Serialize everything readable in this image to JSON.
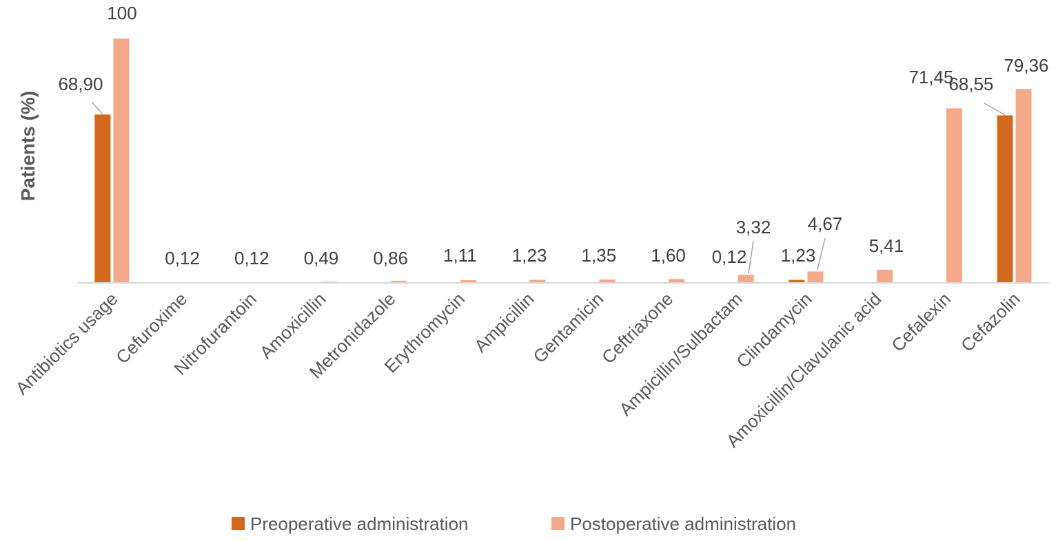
{
  "chart_data": {
    "type": "bar",
    "title": "",
    "xlabel": "",
    "ylabel": "Patients (%)",
    "ylim": [
      0,
      100
    ],
    "grid": false,
    "legend_position": "bottom",
    "categories": [
      "Antibiotics usage",
      "Cefuroxime",
      "Nitrofurantoin",
      "Amoxicillin",
      "Metronidazole",
      "Erythromycin",
      "Ampicillin",
      "Gentamicin",
      "Ceftriaxone",
      "Ampicillin/Sulbactam",
      "Clindamycin",
      "Amoxicillin/Clavulanic acid",
      "Cefalexin",
      "Cefazolin"
    ],
    "series": [
      {
        "name": "Preoperative administration",
        "color": "#d2691e",
        "values": [
          68.9,
          null,
          null,
          null,
          null,
          null,
          null,
          null,
          null,
          0.12,
          1.23,
          null,
          null,
          68.55
        ],
        "labels": [
          "68,90",
          "",
          "",
          "",
          "",
          "",
          "",
          "",
          "",
          "0,12",
          "1,23",
          "",
          "",
          "68,55"
        ]
      },
      {
        "name": "Postoperative administration",
        "color": "#f4a98a",
        "values": [
          100,
          0.12,
          0.12,
          0.49,
          0.86,
          1.11,
          1.23,
          1.35,
          1.6,
          3.32,
          4.67,
          5.41,
          71.45,
          79.36
        ],
        "labels": [
          "100",
          "0,12",
          "0,12",
          "0,49",
          "0,86",
          "1,11",
          "1,23",
          "1,35",
          "1,60",
          "3,32",
          "4,67",
          "5,41",
          "71,45",
          "79,36"
        ]
      }
    ]
  }
}
